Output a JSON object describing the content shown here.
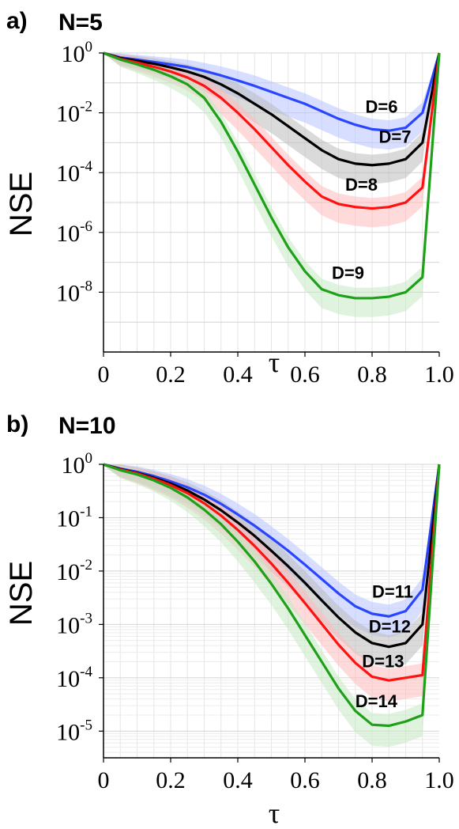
{
  "chart_data": [
    {
      "type": "line",
      "panel_label": "a)",
      "title": "N=5",
      "xlabel": "τ",
      "ylabel": "NSE",
      "xlim": [
        0,
        1
      ],
      "ylim_log10": [
        -10,
        0
      ],
      "yscale": "log",
      "grid": true,
      "x_ticks": [
        "0",
        "0.2",
        "0.4",
        "0.6",
        "0.8",
        "1.0"
      ],
      "y_ticks": [
        {
          "base": "10",
          "exp": "0"
        },
        {
          "base": "10",
          "exp": "-2"
        },
        {
          "base": "10",
          "exp": "-4"
        },
        {
          "base": "10",
          "exp": "-6"
        },
        {
          "base": "10",
          "exp": "-8"
        }
      ],
      "x": [
        0.0,
        0.05,
        0.1,
        0.15,
        0.2,
        0.25,
        0.3,
        0.35,
        0.4,
        0.45,
        0.5,
        0.55,
        0.6,
        0.65,
        0.7,
        0.75,
        0.8,
        0.85,
        0.9,
        0.95,
        1.0
      ],
      "series": [
        {
          "name": "D=6",
          "color": "#2a45ff",
          "band_color": "#b8c2ff",
          "log10_values": [
            0,
            -0.15,
            -0.22,
            -0.3,
            -0.38,
            -0.47,
            -0.6,
            -0.75,
            -0.92,
            -1.1,
            -1.3,
            -1.5,
            -1.7,
            -1.95,
            -2.2,
            -2.4,
            -2.55,
            -2.6,
            -2.5,
            -2.0,
            0
          ],
          "label_x": 0.78,
          "label_log10": -2.0
        },
        {
          "name": "D=7",
          "color": "#000000",
          "band_color": "#bbbbbb",
          "log10_values": [
            0,
            -0.17,
            -0.26,
            -0.36,
            -0.48,
            -0.62,
            -0.8,
            -1.05,
            -1.35,
            -1.7,
            -2.05,
            -2.45,
            -2.85,
            -3.25,
            -3.55,
            -3.7,
            -3.75,
            -3.7,
            -3.55,
            -3.0,
            0
          ],
          "label_x": 0.82,
          "label_log10": -3.0
        },
        {
          "name": "D=8",
          "color": "#ff1111",
          "band_color": "#ffbcbc",
          "log10_values": [
            0,
            -0.2,
            -0.32,
            -0.46,
            -0.62,
            -0.82,
            -1.1,
            -1.5,
            -2.0,
            -2.55,
            -3.15,
            -3.75,
            -4.3,
            -4.8,
            -5.05,
            -5.15,
            -5.2,
            -5.15,
            -5.0,
            -4.5,
            0
          ],
          "label_x": 0.72,
          "label_log10": -4.6
        },
        {
          "name": "D=9",
          "color": "#1fa019",
          "band_color": "#c7eac3",
          "log10_values": [
            0,
            -0.22,
            -0.38,
            -0.56,
            -0.78,
            -1.05,
            -1.5,
            -2.3,
            -3.3,
            -4.4,
            -5.5,
            -6.5,
            -7.3,
            -7.9,
            -8.1,
            -8.2,
            -8.2,
            -8.15,
            -8.0,
            -7.5,
            0
          ],
          "label_x": 0.68,
          "label_log10": -7.55
        }
      ]
    },
    {
      "type": "line",
      "panel_label": "b)",
      "title": "N=10",
      "xlabel": "τ",
      "ylabel": "NSE",
      "xlim": [
        0,
        1
      ],
      "ylim_log10": [
        -5.5,
        0
      ],
      "yscale": "log",
      "grid": true,
      "x_ticks": [
        "0",
        "0.2",
        "0.4",
        "0.6",
        "0.8",
        "1.0"
      ],
      "y_ticks": [
        {
          "base": "10",
          "exp": "0"
        },
        {
          "base": "10",
          "exp": "-1"
        },
        {
          "base": "10",
          "exp": "-2"
        },
        {
          "base": "10",
          "exp": "-3"
        },
        {
          "base": "10",
          "exp": "-4"
        },
        {
          "base": "10",
          "exp": "-5"
        }
      ],
      "x": [
        0.0,
        0.05,
        0.1,
        0.15,
        0.2,
        0.25,
        0.3,
        0.35,
        0.4,
        0.45,
        0.5,
        0.55,
        0.6,
        0.65,
        0.7,
        0.75,
        0.8,
        0.85,
        0.9,
        0.95,
        1.0
      ],
      "series": [
        {
          "name": "D=11",
          "color": "#2a45ff",
          "band_color": "#b8c2ff",
          "log10_values": [
            0,
            -0.08,
            -0.14,
            -0.22,
            -0.32,
            -0.43,
            -0.57,
            -0.74,
            -0.94,
            -1.15,
            -1.38,
            -1.62,
            -1.88,
            -2.15,
            -2.42,
            -2.66,
            -2.8,
            -2.85,
            -2.75,
            -2.35,
            0
          ],
          "label_x": 0.8,
          "label_log10": -2.5
        },
        {
          "name": "D=12",
          "color": "#000000",
          "band_color": "#bbbbbb",
          "log10_values": [
            0,
            -0.09,
            -0.16,
            -0.25,
            -0.36,
            -0.49,
            -0.66,
            -0.86,
            -1.09,
            -1.34,
            -1.62,
            -1.91,
            -2.22,
            -2.55,
            -2.87,
            -3.15,
            -3.35,
            -3.42,
            -3.35,
            -3.0,
            0
          ],
          "label_x": 0.79,
          "label_log10": -3.15
        },
        {
          "name": "D=13",
          "color": "#ff1111",
          "band_color": "#ffbcbc",
          "log10_values": [
            0,
            -0.1,
            -0.17,
            -0.27,
            -0.39,
            -0.54,
            -0.73,
            -0.96,
            -1.23,
            -1.53,
            -1.86,
            -2.22,
            -2.6,
            -2.99,
            -3.38,
            -3.72,
            -3.98,
            -4.05,
            -4.0,
            -3.95,
            0
          ],
          "label_x": 0.77,
          "label_log10": -3.8
        },
        {
          "name": "D=14",
          "color": "#1fa019",
          "band_color": "#c7eac3",
          "log10_values": [
            0,
            -0.11,
            -0.19,
            -0.3,
            -0.44,
            -0.62,
            -0.85,
            -1.12,
            -1.45,
            -1.82,
            -2.24,
            -2.7,
            -3.2,
            -3.7,
            -4.2,
            -4.62,
            -4.88,
            -4.9,
            -4.82,
            -4.7,
            0
          ],
          "label_x": 0.75,
          "label_log10": -4.55
        }
      ]
    }
  ]
}
